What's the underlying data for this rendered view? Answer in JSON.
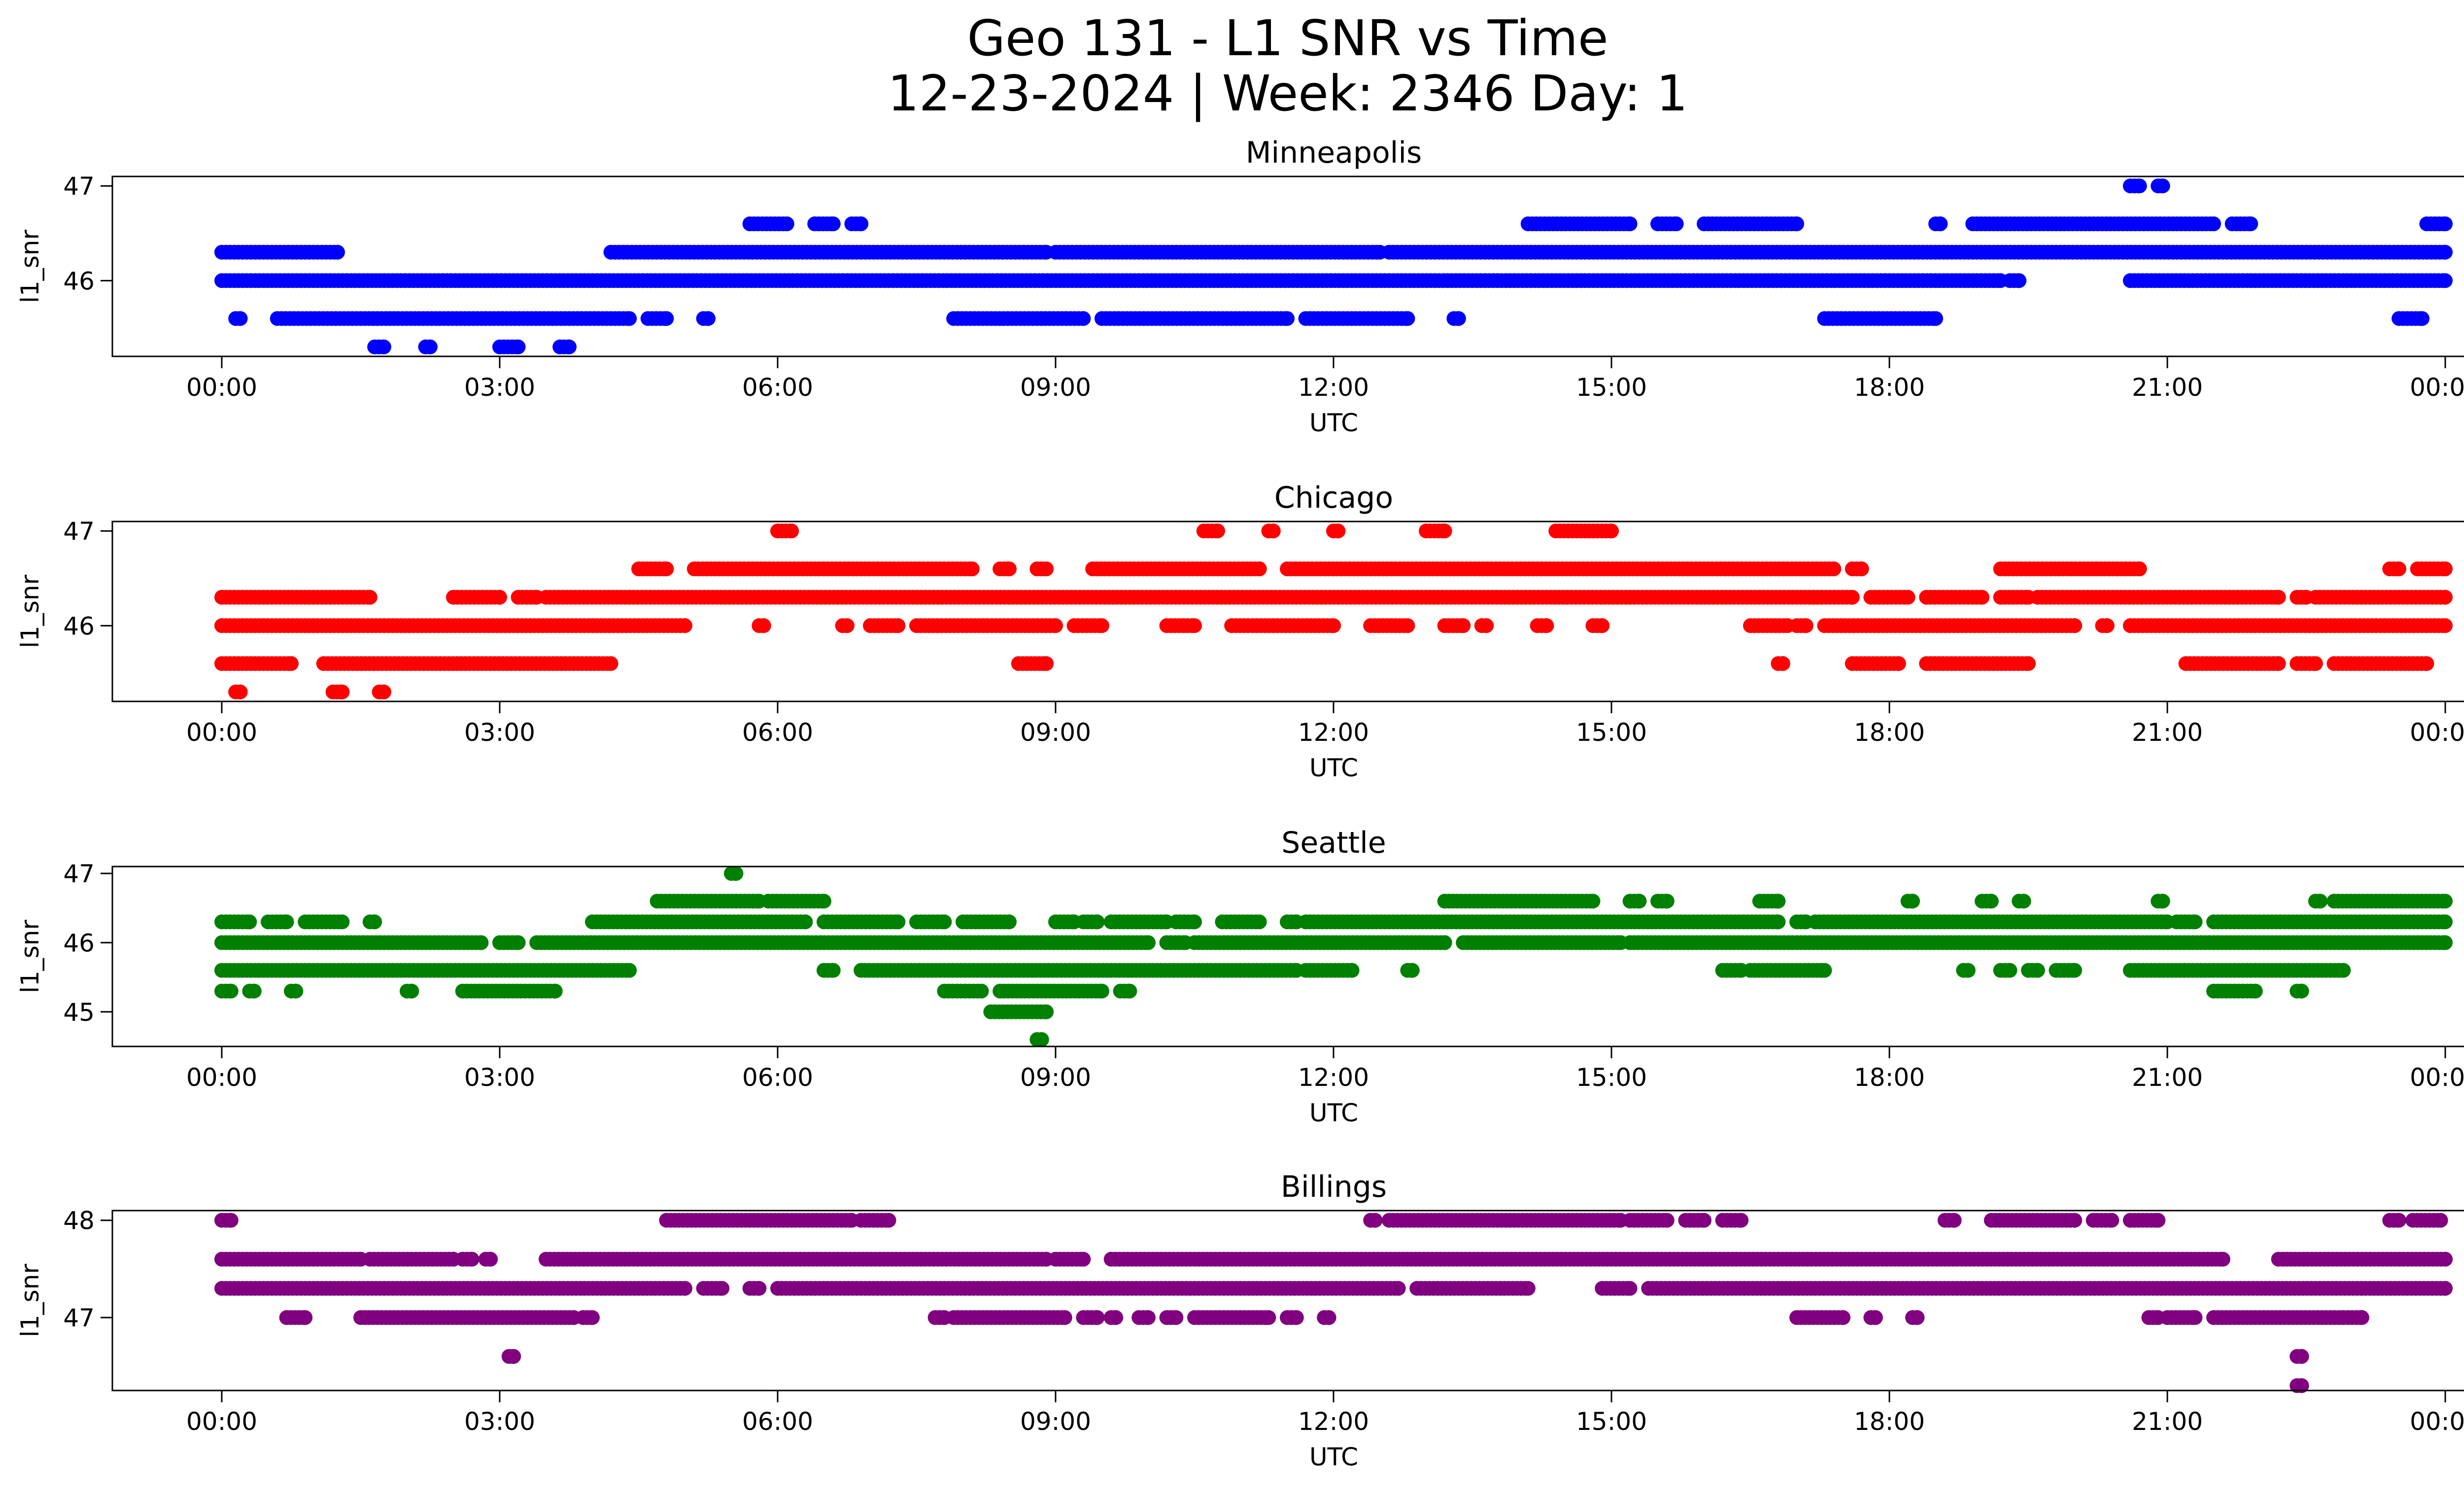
{
  "title": "Geo 131 - L1 SNR vs Time",
  "subtitle": "12-23-2024 | Week: 2346 Day: 1",
  "chart_data": [
    {
      "type": "scatter",
      "title": "Minneapolis",
      "xlabel": "UTC",
      "ylabel": "l1_snr",
      "color": "#0000ff",
      "x_ticks": [
        "00:00",
        "03:00",
        "06:00",
        "09:00",
        "12:00",
        "15:00",
        "18:00",
        "21:00",
        "00:00"
      ],
      "y_ticks": [
        46,
        47
      ],
      "ylim": [
        45.2,
        47.1
      ],
      "series": [
        {
          "y": 46.3,
          "segments": [
            [
              0.0,
              1.25
            ],
            [
              4.2,
              8.9
            ],
            [
              9.0,
              12.5
            ],
            [
              12.6,
              24.0
            ]
          ]
        },
        {
          "y": 46.0,
          "segments": [
            [
              0.0,
              19.2
            ],
            [
              19.3,
              19.4
            ],
            [
              20.6,
              24.0
            ]
          ]
        },
        {
          "y": 45.6,
          "segments": [
            [
              0.15,
              0.2
            ],
            [
              0.6,
              4.4
            ],
            [
              4.6,
              4.8
            ],
            [
              5.2,
              5.25
            ],
            [
              7.9,
              9.3
            ],
            [
              9.5,
              11.5
            ],
            [
              11.7,
              12.8
            ],
            [
              13.3,
              13.35
            ],
            [
              17.3,
              18.5
            ],
            [
              23.5,
              23.75
            ]
          ]
        },
        {
          "y": 46.6,
          "segments": [
            [
              5.7,
              6.1
            ],
            [
              6.4,
              6.6
            ],
            [
              6.8,
              6.9
            ],
            [
              14.1,
              15.2
            ],
            [
              15.5,
              15.7
            ],
            [
              16.0,
              17.0
            ],
            [
              18.5,
              18.55
            ],
            [
              18.9,
              21.5
            ],
            [
              21.7,
              21.9
            ],
            [
              23.8,
              24.0
            ]
          ]
        },
        {
          "y": 45.3,
          "segments": [
            [
              1.65,
              1.75
            ],
            [
              2.2,
              2.25
            ],
            [
              3.0,
              3.2
            ],
            [
              3.65,
              3.75
            ]
          ]
        },
        {
          "y": 47.0,
          "segments": [
            [
              20.6,
              20.7
            ],
            [
              20.9,
              20.95
            ]
          ]
        }
      ]
    },
    {
      "type": "scatter",
      "title": "Chicago",
      "xlabel": "UTC",
      "ylabel": "l1_snr",
      "color": "#ff0000",
      "x_ticks": [
        "00:00",
        "03:00",
        "06:00",
        "09:00",
        "12:00",
        "15:00",
        "18:00",
        "21:00",
        "00:00"
      ],
      "y_ticks": [
        46,
        47
      ],
      "ylim": [
        45.2,
        47.1
      ],
      "series": [
        {
          "y": 46.3,
          "segments": [
            [
              0.0,
              1.6
            ],
            [
              2.5,
              3.0
            ],
            [
              3.2,
              3.4
            ],
            [
              3.5,
              17.6
            ],
            [
              17.8,
              18.2
            ],
            [
              18.4,
              19.0
            ],
            [
              19.2,
              19.5
            ],
            [
              19.6,
              22.2
            ],
            [
              22.4,
              22.5
            ],
            [
              22.6,
              24.0
            ]
          ]
        },
        {
          "y": 46.0,
          "segments": [
            [
              0.0,
              5.0
            ],
            [
              5.8,
              5.85
            ],
            [
              6.7,
              6.75
            ],
            [
              7.0,
              7.3
            ],
            [
              7.5,
              9.0
            ],
            [
              9.2,
              9.5
            ],
            [
              10.2,
              10.5
            ],
            [
              10.9,
              12.0
            ],
            [
              12.4,
              12.8
            ],
            [
              13.2,
              13.4
            ],
            [
              13.6,
              13.65
            ],
            [
              14.2,
              14.3
            ],
            [
              14.8,
              14.9
            ],
            [
              16.5,
              16.9
            ],
            [
              17.0,
              17.1
            ],
            [
              17.3,
              20.0
            ],
            [
              20.3,
              20.35
            ],
            [
              20.6,
              24.0
            ]
          ]
        },
        {
          "y": 45.6,
          "segments": [
            [
              0.0,
              0.75
            ],
            [
              1.1,
              4.2
            ],
            [
              8.6,
              8.9
            ],
            [
              16.8,
              16.85
            ],
            [
              17.6,
              18.1
            ],
            [
              18.4,
              19.5
            ],
            [
              21.2,
              22.2
            ],
            [
              22.4,
              22.6
            ],
            [
              22.8,
              23.8
            ]
          ]
        },
        {
          "y": 46.6,
          "segments": [
            [
              4.5,
              4.8
            ],
            [
              5.1,
              8.1
            ],
            [
              8.4,
              8.5
            ],
            [
              8.8,
              8.9
            ],
            [
              9.4,
              11.2
            ],
            [
              11.5,
              17.4
            ],
            [
              17.6,
              17.7
            ],
            [
              19.2,
              20.7
            ],
            [
              23.4,
              23.5
            ],
            [
              23.7,
              24.0
            ]
          ]
        },
        {
          "y": 47.0,
          "segments": [
            [
              6.0,
              6.15
            ],
            [
              10.6,
              10.75
            ],
            [
              11.3,
              11.35
            ],
            [
              12.0,
              12.05
            ],
            [
              13.0,
              13.2
            ],
            [
              14.4,
              15.0
            ]
          ]
        },
        {
          "y": 45.3,
          "segments": [
            [
              0.15,
              0.2
            ],
            [
              1.2,
              1.3
            ],
            [
              1.7,
              1.75
            ]
          ]
        }
      ]
    },
    {
      "type": "scatter",
      "title": "Seattle",
      "xlabel": "UTC",
      "ylabel": "l1_snr",
      "color": "#008000",
      "x_ticks": [
        "00:00",
        "03:00",
        "06:00",
        "09:00",
        "12:00",
        "15:00",
        "18:00",
        "21:00",
        "00:00"
      ],
      "y_ticks": [
        45,
        46,
        47
      ],
      "ylim": [
        44.5,
        47.1
      ],
      "series": [
        {
          "y": 46.3,
          "segments": [
            [
              0.0,
              0.3
            ],
            [
              0.5,
              0.7
            ],
            [
              0.9,
              1.3
            ],
            [
              1.6,
              1.65
            ],
            [
              4.0,
              6.3
            ],
            [
              6.5,
              7.3
            ],
            [
              7.5,
              7.8
            ],
            [
              8.0,
              8.5
            ],
            [
              9.0,
              9.2
            ],
            [
              9.3,
              9.45
            ],
            [
              9.6,
              10.2
            ],
            [
              10.3,
              10.5
            ],
            [
              10.8,
              11.2
            ],
            [
              11.5,
              11.6
            ],
            [
              11.7,
              16.8
            ],
            [
              17.0,
              17.1
            ],
            [
              17.2,
              21.0
            ],
            [
              21.1,
              21.3
            ],
            [
              21.5,
              24.0
            ]
          ]
        },
        {
          "y": 46.0,
          "segments": [
            [
              0.0,
              2.8
            ],
            [
              3.0,
              3.2
            ],
            [
              3.4,
              10.0
            ],
            [
              10.2,
              10.4
            ],
            [
              10.5,
              13.2
            ],
            [
              13.4,
              15.1
            ],
            [
              15.2,
              24.0
            ]
          ]
        },
        {
          "y": 45.6,
          "segments": [
            [
              0.0,
              4.4
            ],
            [
              6.5,
              6.6
            ],
            [
              6.9,
              11.6
            ],
            [
              11.7,
              12.2
            ],
            [
              12.8,
              12.85
            ],
            [
              16.2,
              16.4
            ],
            [
              16.5,
              17.3
            ],
            [
              18.8,
              18.85
            ],
            [
              19.2,
              19.3
            ],
            [
              19.5,
              19.6
            ],
            [
              19.8,
              20.0
            ],
            [
              20.6,
              22.9
            ]
          ]
        },
        {
          "y": 46.6,
          "segments": [
            [
              4.7,
              5.8
            ],
            [
              5.9,
              6.5
            ],
            [
              13.2,
              14.8
            ],
            [
              15.2,
              15.3
            ],
            [
              15.5,
              15.6
            ],
            [
              16.6,
              16.8
            ],
            [
              18.2,
              18.25
            ],
            [
              19.0,
              19.1
            ],
            [
              19.4,
              19.45
            ],
            [
              20.9,
              20.95
            ],
            [
              22.6,
              22.65
            ],
            [
              22.8,
              24.0
            ]
          ]
        },
        {
          "y": 45.3,
          "segments": [
            [
              0.0,
              0.1
            ],
            [
              0.3,
              0.35
            ],
            [
              0.75,
              0.8
            ],
            [
              2.0,
              2.05
            ],
            [
              2.6,
              3.6
            ],
            [
              7.8,
              8.2
            ],
            [
              8.4,
              9.5
            ],
            [
              9.7,
              9.8
            ],
            [
              21.5,
              21.95
            ],
            [
              22.4,
              22.45
            ]
          ]
        },
        {
          "y": 45.0,
          "segments": [
            [
              8.3,
              8.9
            ]
          ]
        },
        {
          "y": 47.0,
          "segments": [
            [
              5.5,
              5.55
            ]
          ]
        },
        {
          "y": 44.6,
          "segments": [
            [
              8.8,
              8.85
            ]
          ]
        }
      ]
    },
    {
      "type": "scatter",
      "title": "Billings",
      "xlabel": "UTC",
      "ylabel": "l1_snr",
      "color": "#800080",
      "x_ticks": [
        "00:00",
        "03:00",
        "06:00",
        "09:00",
        "12:00",
        "15:00",
        "18:00",
        "21:00",
        "00:00"
      ],
      "y_ticks": [
        47,
        48
      ],
      "ylim": [
        46.25,
        48.1
      ],
      "series": [
        {
          "y": 47.6,
          "segments": [
            [
              0.0,
              1.5
            ],
            [
              1.6,
              2.5
            ],
            [
              2.6,
              2.7
            ],
            [
              2.85,
              2.9
            ],
            [
              3.5,
              8.9
            ],
            [
              9.0,
              9.3
            ],
            [
              9.6,
              21.6
            ],
            [
              22.2,
              24.0
            ]
          ]
        },
        {
          "y": 47.3,
          "segments": [
            [
              0.0,
              5.0
            ],
            [
              5.2,
              5.4
            ],
            [
              5.7,
              5.8
            ],
            [
              6.0,
              12.7
            ],
            [
              12.9,
              14.1
            ],
            [
              14.9,
              15.2
            ],
            [
              15.4,
              24.0
            ]
          ]
        },
        {
          "y": 47.0,
          "segments": [
            [
              0.7,
              0.9
            ],
            [
              1.5,
              3.8
            ],
            [
              3.9,
              4.0
            ],
            [
              7.7,
              7.8
            ],
            [
              7.9,
              9.1
            ],
            [
              9.3,
              9.45
            ],
            [
              9.6,
              9.65
            ],
            [
              9.9,
              10.0
            ],
            [
              10.2,
              10.3
            ],
            [
              10.5,
              11.3
            ],
            [
              11.5,
              11.6
            ],
            [
              11.9,
              11.95
            ],
            [
              17.0,
              17.5
            ],
            [
              17.8,
              17.85
            ],
            [
              18.25,
              18.3
            ],
            [
              20.8,
              20.9
            ],
            [
              21.0,
              21.3
            ],
            [
              21.5,
              22.9
            ],
            [
              22.95,
              23.1
            ]
          ]
        },
        {
          "y": 48.0,
          "segments": [
            [
              0.0,
              0.1
            ],
            [
              4.8,
              6.8
            ],
            [
              6.9,
              7.2
            ],
            [
              12.4,
              12.45
            ],
            [
              12.6,
              15.1
            ],
            [
              15.2,
              15.6
            ],
            [
              15.8,
              16.0
            ],
            [
              16.2,
              16.4
            ],
            [
              18.6,
              18.7
            ],
            [
              19.1,
              20.0
            ],
            [
              20.2,
              20.4
            ],
            [
              20.6,
              20.9
            ],
            [
              23.4,
              23.5
            ],
            [
              23.65,
              23.95
            ]
          ]
        },
        {
          "y": 46.6,
          "segments": [
            [
              3.1,
              3.15
            ],
            [
              22.4,
              22.45
            ]
          ]
        },
        {
          "y": 46.3,
          "segments": [
            [
              22.4,
              22.45
            ]
          ]
        }
      ]
    }
  ]
}
